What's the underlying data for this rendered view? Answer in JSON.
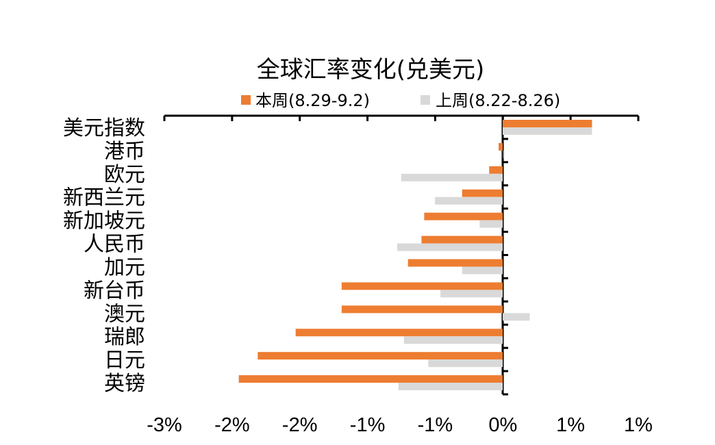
{
  "chart_data": {
    "type": "bar",
    "orientation": "horizontal",
    "title": "全球汇率变化(兑美元)",
    "categories": [
      "美元指数",
      "港币",
      "欧元",
      "新西兰元",
      "新加坡元",
      "人民币",
      "加元",
      "新台币",
      "澳元",
      "瑞郎",
      "日元",
      "英镑"
    ],
    "series": [
      {
        "name": "本周(8.29-9.2)",
        "color": "#ED7D31",
        "values": [
          0.66,
          -0.03,
          -0.1,
          -0.3,
          -0.58,
          -0.6,
          -0.7,
          -1.19,
          -1.19,
          -1.53,
          -1.81,
          -1.95
        ]
      },
      {
        "name": "上周(8.22-8.26)",
        "color": "#D9D9D9",
        "values": [
          0.66,
          0.0,
          -0.75,
          -0.5,
          -0.17,
          -0.78,
          -0.3,
          -0.46,
          0.2,
          -0.73,
          -0.55,
          -0.77
        ]
      }
    ],
    "xlim": [
      -2.5,
      1.0
    ],
    "xticks": [
      "-3%",
      "-2%",
      "-2%",
      "-1%",
      "-1%",
      "0%",
      "1%",
      "1%"
    ],
    "legend_position": "top",
    "grid": false,
    "xlabel": "",
    "ylabel": ""
  }
}
